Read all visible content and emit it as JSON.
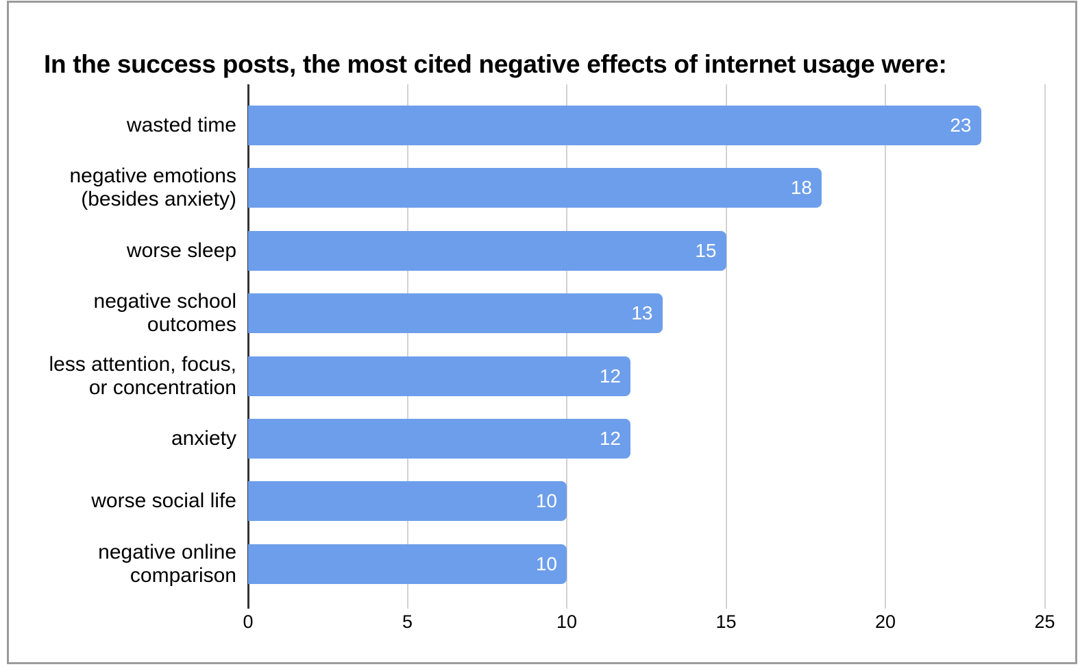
{
  "window": {
    "frame_color": "#9b9b9b",
    "background": "#ffffff"
  },
  "chart_data": {
    "type": "bar",
    "orientation": "horizontal",
    "title": "In the success posts, the most cited negative effects of internet usage were:",
    "categories": [
      "wasted time",
      "negative emotions\n(besides anxiety)",
      "worse sleep",
      "negative school\noutcomes",
      "less attention, focus,\nor concentration",
      "anxiety",
      "worse social life",
      "negative online\ncomparison"
    ],
    "values": [
      23,
      18,
      15,
      13,
      12,
      12,
      10,
      10
    ],
    "value_labels": [
      "23",
      "18",
      "15",
      "13",
      "12",
      "12",
      "10",
      "10"
    ],
    "xlabel": "",
    "ylabel": "",
    "xlim": [
      0,
      25
    ],
    "xticks": [
      0,
      5,
      10,
      15,
      20,
      25
    ],
    "grid": "vertical-gridlines-on",
    "legend": "none",
    "bar_color": "#6d9eeb",
    "value_label_color": "#ffffff",
    "gridline_color": "#d2d2d2",
    "axis_line_color": "#333333",
    "text_color": "#000000"
  }
}
